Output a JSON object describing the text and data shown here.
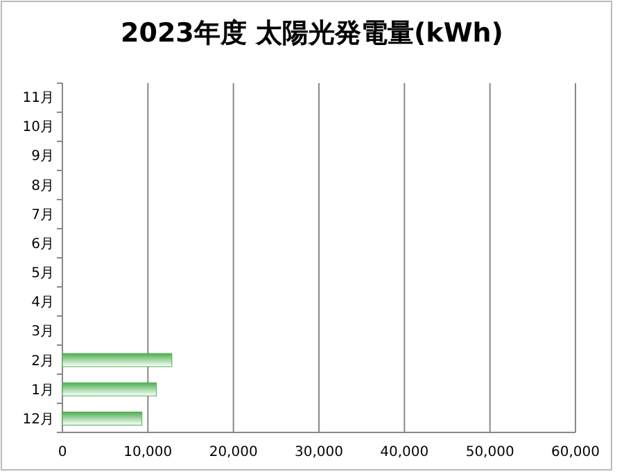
{
  "chart_data": {
    "type": "bar",
    "orientation": "horizontal",
    "title": "2023年度 太陽光発電量(kWh)",
    "categories": [
      "11月",
      "10月",
      "9月",
      "8月",
      "7月",
      "6月",
      "5月",
      "4月",
      "3月",
      "2月",
      "1月",
      "12月"
    ],
    "values": [
      null,
      null,
      null,
      null,
      null,
      null,
      null,
      null,
      null,
      12800,
      11000,
      9300
    ],
    "color": "#4caf50",
    "xlim": [
      0,
      60000
    ],
    "xticks": [
      {
        "value": 0,
        "label": "0"
      },
      {
        "value": 10000,
        "label": "10,000"
      },
      {
        "value": 20000,
        "label": "20,000"
      },
      {
        "value": 30000,
        "label": "30,000"
      },
      {
        "value": 40000,
        "label": "40,000"
      },
      {
        "value": 50000,
        "label": "50,000"
      },
      {
        "value": 60000,
        "label": "60,000"
      }
    ],
    "grid": "x"
  }
}
